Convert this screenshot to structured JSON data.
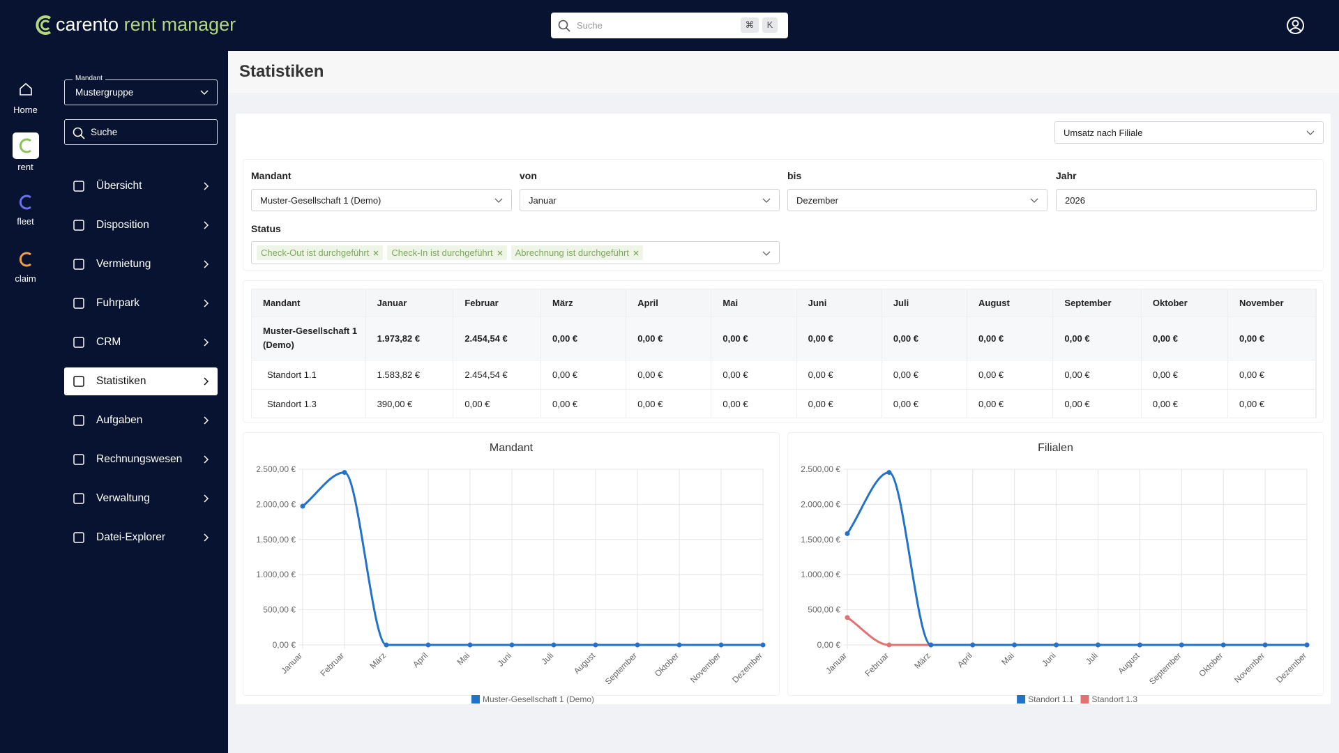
{
  "header": {
    "logo_brand": "carento",
    "logo_product": "rent manager",
    "search_placeholder": "Suche",
    "shortcut_keys": [
      "⌘",
      "K"
    ]
  },
  "app_rail": [
    "Home",
    "rent",
    "fleet",
    "claim"
  ],
  "sidebar": {
    "mandant_label": "Mandant",
    "mandant_value": "Mustergruppe",
    "search_placeholder": "Suche",
    "nav": [
      "Übersicht",
      "Disposition",
      "Vermietung",
      "Fuhrpark",
      "CRM",
      "Statistiken",
      "Aufgaben",
      "Rechnungswesen",
      "Verwaltung",
      "Datei-Explorer"
    ],
    "active_index": 5
  },
  "page": {
    "title": "Statistiken",
    "report_select": "Umsatz nach Filiale"
  },
  "filters": {
    "mandant": {
      "label": "Mandant",
      "value": "Muster-Gesellschaft 1 (Demo)"
    },
    "von": {
      "label": "von",
      "value": "Januar"
    },
    "bis": {
      "label": "bis",
      "value": "Dezember"
    },
    "jahr": {
      "label": "Jahr",
      "value": "2026"
    },
    "status": {
      "label": "Status",
      "chips": [
        "Check-Out ist durchgeführt",
        "Check-In ist durchgeführt",
        "Abrechnung ist durchgeführt"
      ]
    }
  },
  "table": {
    "columns": [
      "Mandant",
      "Januar",
      "Februar",
      "März",
      "April",
      "Mai",
      "Juni",
      "Juli",
      "August",
      "September",
      "Oktober",
      "November"
    ],
    "rows": [
      [
        "Muster-Gesellschaft 1 (Demo)",
        "1.973,82 €",
        "2.454,54 €",
        "0,00 €",
        "0,00 €",
        "0,00 €",
        "0,00 €",
        "0,00 €",
        "0,00 €",
        "0,00 €",
        "0,00 €",
        "0,00 €"
      ],
      [
        "Standort 1.1",
        "1.583,82 €",
        "2.454,54 €",
        "0,00 €",
        "0,00 €",
        "0,00 €",
        "0,00 €",
        "0,00 €",
        "0,00 €",
        "0,00 €",
        "0,00 €",
        "0,00 €"
      ],
      [
        "Standort 1.3",
        "390,00 €",
        "0,00 €",
        "0,00 €",
        "0,00 €",
        "0,00 €",
        "0,00 €",
        "0,00 €",
        "0,00 €",
        "0,00 €",
        "0,00 €",
        "0,00 €"
      ]
    ]
  },
  "chart_data": [
    {
      "type": "line",
      "title": "Mandant",
      "categories": [
        "Januar",
        "Februar",
        "März",
        "April",
        "Mai",
        "Juni",
        "Juli",
        "August",
        "September",
        "Oktober",
        "November",
        "Dezember"
      ],
      "series": [
        {
          "name": "Muster-Gesellschaft 1 (Demo)",
          "color": "#2272c9",
          "values": [
            1973.82,
            2454.54,
            0,
            0,
            0,
            0,
            0,
            0,
            0,
            0,
            0,
            0
          ]
        }
      ],
      "ylim": [
        0,
        2500
      ],
      "yticks": [
        {
          "value": 0,
          "label": "0,00 €"
        },
        {
          "value": 500,
          "label": "500,00 €"
        },
        {
          "value": 1000,
          "label": "1.000,00 €"
        },
        {
          "value": 1500,
          "label": "1.500,00 €"
        },
        {
          "value": 2000,
          "label": "2.000,00 €"
        },
        {
          "value": 2500,
          "label": "2.500,00 €"
        }
      ],
      "grid": true,
      "legend": "bottom"
    },
    {
      "type": "line",
      "title": "Filialen",
      "categories": [
        "Januar",
        "Februar",
        "März",
        "April",
        "Mai",
        "Juni",
        "Juli",
        "August",
        "September",
        "Oktober",
        "November",
        "Dezember"
      ],
      "series": [
        {
          "name": "Standort 1.1",
          "color": "#2272c9",
          "values": [
            1583.82,
            2454.54,
            0,
            0,
            0,
            0,
            0,
            0,
            0,
            0,
            0,
            0
          ]
        },
        {
          "name": "Standort 1.3",
          "color": "#e07272",
          "values": [
            390,
            0,
            0,
            0,
            0,
            0,
            0,
            0,
            0,
            0,
            0,
            0
          ]
        }
      ],
      "ylim": [
        0,
        2500
      ],
      "yticks": [
        {
          "value": 0,
          "label": "0,00 €"
        },
        {
          "value": 500,
          "label": "500,00 €"
        },
        {
          "value": 1000,
          "label": "1.000,00 €"
        },
        {
          "value": 1500,
          "label": "1.500,00 €"
        },
        {
          "value": 2000,
          "label": "2.000,00 €"
        },
        {
          "value": 2500,
          "label": "2.500,00 €"
        }
      ],
      "grid": true,
      "legend": "bottom"
    }
  ]
}
